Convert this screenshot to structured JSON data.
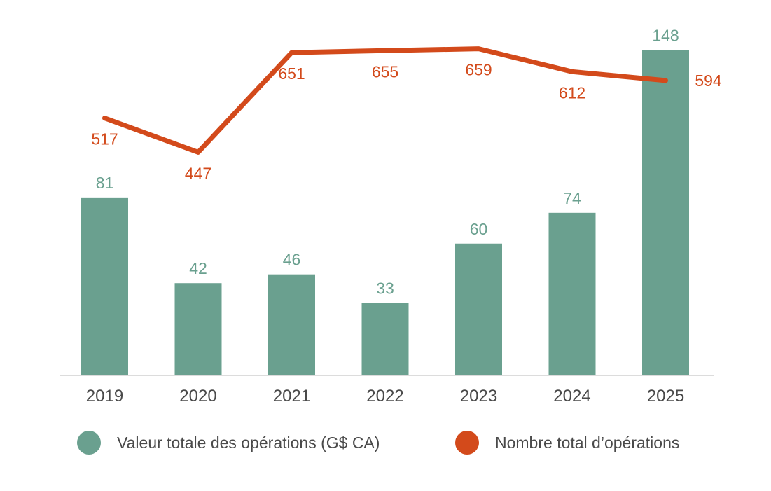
{
  "chart_data": {
    "type": "combo_bar_line",
    "categories": [
      "2019",
      "2020",
      "2021",
      "2022",
      "2023",
      "2024",
      "2025"
    ],
    "series": [
      {
        "name": "Valeur totale des opérations (G$ CA)",
        "type": "bar",
        "values": [
          81,
          42,
          46,
          33,
          60,
          74,
          148
        ],
        "color": "#6AA08F",
        "axis_min": 0,
        "axis_max": 160
      },
      {
        "name": "Nombre total d’opérations",
        "type": "line",
        "values": [
          517,
          447,
          651,
          655,
          659,
          612,
          594
        ],
        "color": "#D34A1B",
        "axis_min": -10,
        "axis_max": 710
      }
    ],
    "title": "",
    "xlabel": "",
    "ylabel": "",
    "grid": false,
    "data_labels": true,
    "legend_position": "bottom",
    "x_tick_color": "#4a4a4a",
    "axis_line_color": "#dcdcdc"
  }
}
